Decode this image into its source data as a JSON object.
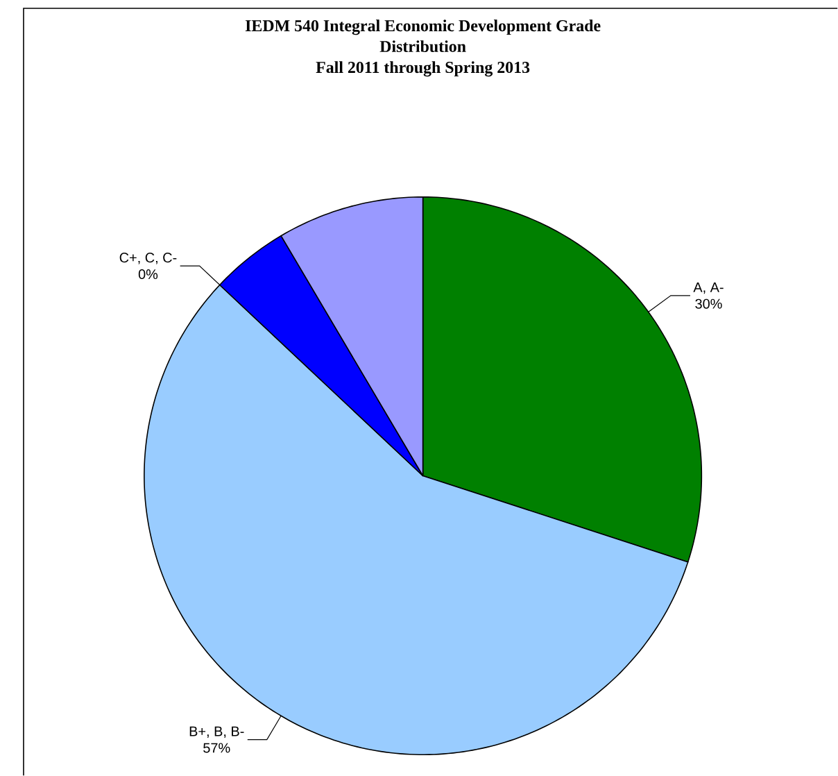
{
  "chart_data": {
    "type": "pie",
    "title": "IEDM 540 Integral Economic Development Grade Distribution",
    "subtitle": "Fall 2011 through Spring 2013",
    "categories": [
      "A, A-",
      "B+, B, B-",
      "C+, C, C-",
      null,
      null
    ],
    "values": [
      30,
      57,
      0,
      4.5,
      8.5
    ],
    "colors": [
      "#008000",
      "#99ccff",
      "#0000ff",
      "#0000ff",
      "#9999ff"
    ],
    "value_labels": [
      "30%",
      "57%",
      "0%",
      null,
      null
    ]
  }
}
